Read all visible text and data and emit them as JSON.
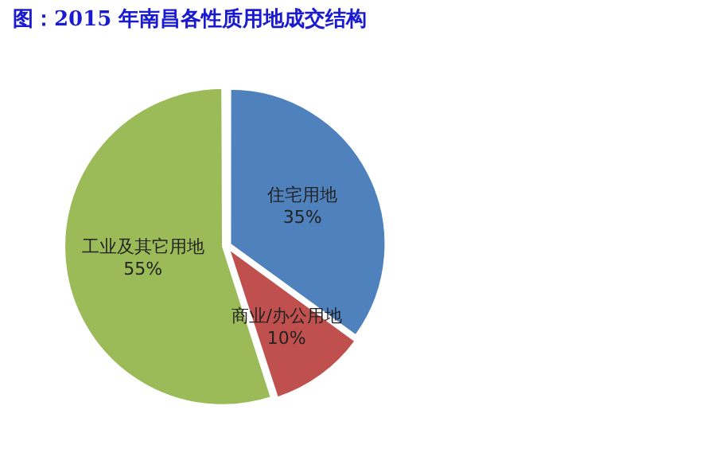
{
  "chart_data": {
    "type": "pie",
    "title": "图：2015 年南昌各性质用地成交结构",
    "categories": [
      "住宅用地",
      "商业/办公用地",
      "工业及其它用地"
    ],
    "values": [
      35,
      10,
      55
    ],
    "colors": [
      "#4f81bd",
      "#c0504d",
      "#9bbb59"
    ],
    "value_labels": [
      "35%",
      "10%",
      "55%"
    ],
    "legend": false
  }
}
